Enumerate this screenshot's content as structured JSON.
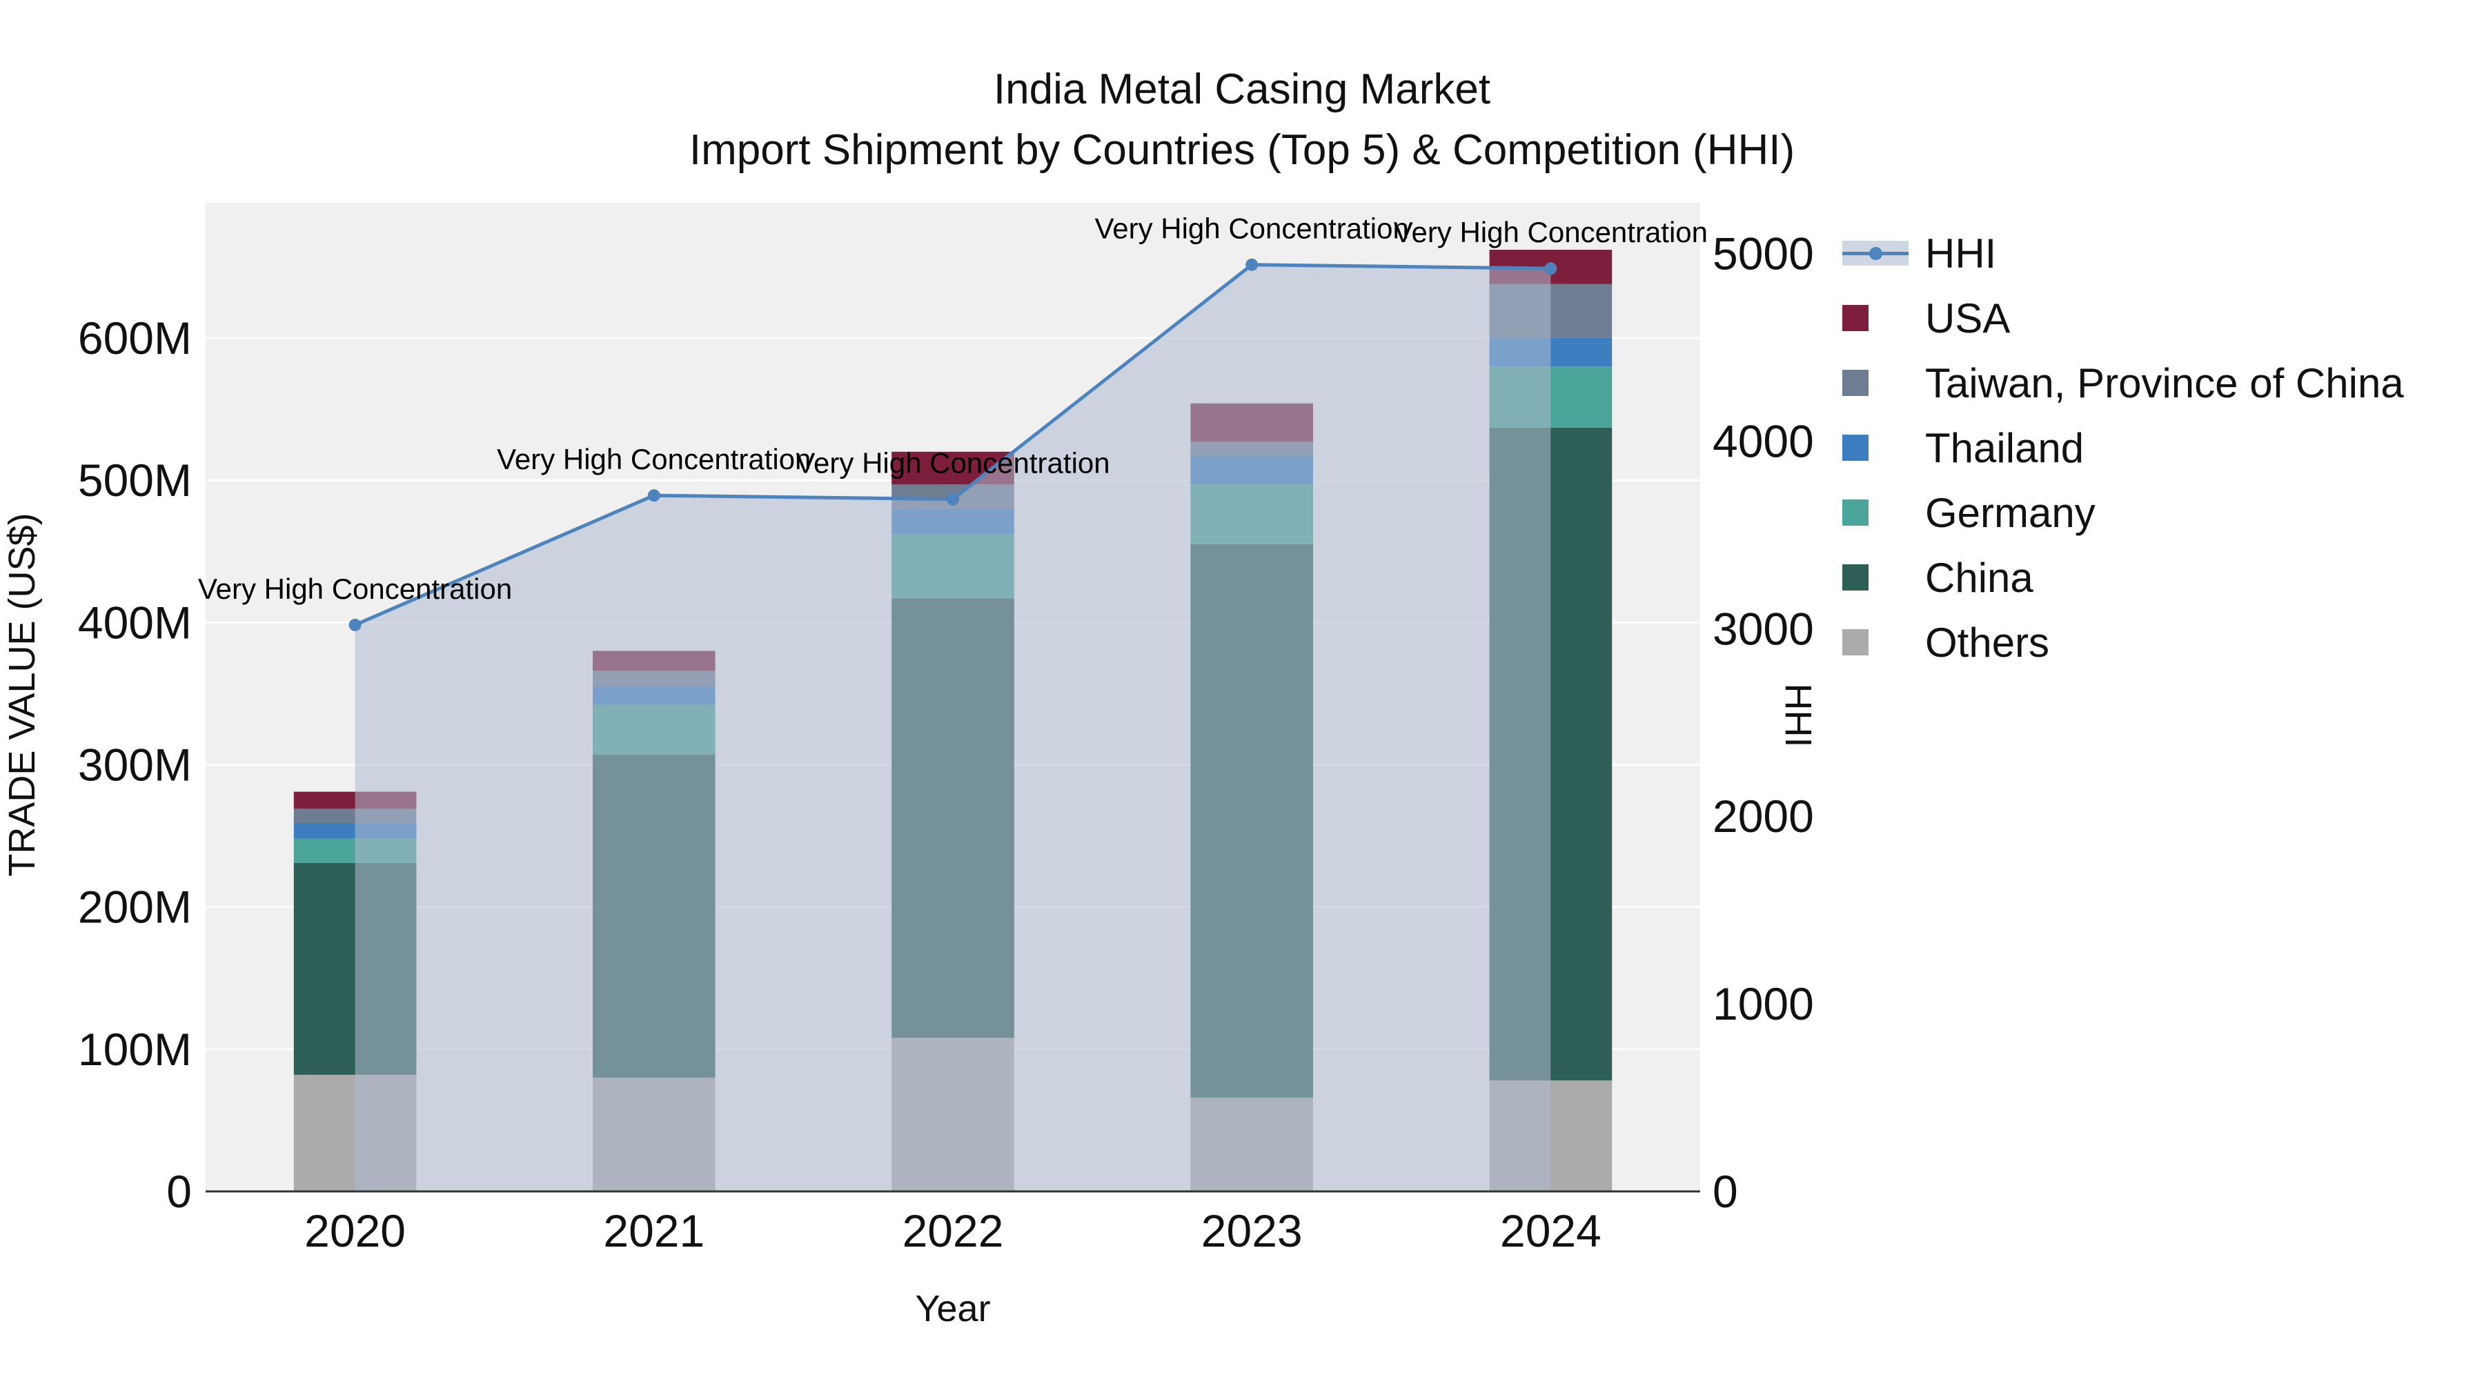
{
  "chart_data": {
    "type": "bar",
    "subtype": "stacked-bar-with-line-overlay-and-area",
    "title": "India Metal Casing Market",
    "subtitle": "Import Shipment by Countries (Top 5) & Competition (HHI)",
    "xlabel": "Year",
    "ylabel": "TRADE VALUE (US$)",
    "ylabel_secondary": "HHI",
    "categories": [
      "2020",
      "2021",
      "2022",
      "2023",
      "2024"
    ],
    "value_unit": "millions USD (read from left axis)",
    "stack_order": "bottom_to_top",
    "series": [
      {
        "name": "Others",
        "color": "#ababab",
        "values": [
          82,
          80,
          108,
          66,
          78
        ]
      },
      {
        "name": "China",
        "color": "#2d5f56",
        "values": [
          149,
          227,
          309,
          389,
          459
        ]
      },
      {
        "name": "Germany",
        "color": "#4ba59a",
        "values": [
          17,
          35,
          45,
          42,
          43
        ]
      },
      {
        "name": "Thailand",
        "color": "#3c7ec0",
        "values": [
          11,
          13,
          18,
          20,
          20
        ]
      },
      {
        "name": "Taiwan, Province of China",
        "color": "#6f7d92",
        "values": [
          10,
          11,
          17,
          10,
          38
        ]
      },
      {
        "name": "USA",
        "color": "#7c1e3c",
        "values": [
          12,
          14,
          23,
          27,
          24
        ]
      }
    ],
    "bar_totals": [
      281,
      380,
      520,
      554,
      662
    ],
    "line_series": {
      "name": "HHI",
      "axis": "right",
      "color": "#4d84bd",
      "area_fill": "rgba(174,188,207,0.55)",
      "values": [
        3020,
        3710,
        3690,
        4940,
        4920
      ]
    },
    "point_annotations": [
      "Very High Concentration",
      "Very High Concentration",
      "Very High Concentration",
      "Very High Concentration",
      "Very High Concentration"
    ],
    "axes": {
      "left": {
        "tick_labels": [
          "0",
          "100M",
          "200M",
          "300M",
          "400M",
          "500M",
          "600M"
        ],
        "tick_values": [
          0,
          100,
          200,
          300,
          400,
          500,
          600
        ],
        "range": [
          0,
          695
        ]
      },
      "right": {
        "tick_labels": [
          "0",
          "1000",
          "2000",
          "3000",
          "4000",
          "5000"
        ],
        "tick_values": [
          0,
          1000,
          2000,
          3000,
          4000,
          5000
        ],
        "range": [
          0,
          5270
        ]
      }
    },
    "grid": {
      "horizontal": true,
      "color": "#ffffff"
    },
    "plot_background": "#f0f0f0",
    "axis_line_color": "#333333",
    "legend": {
      "position": "right",
      "entries": [
        {
          "label": "HHI",
          "swatch": "line",
          "color": "#4d84bd",
          "fill": "#cdd6e1"
        },
        {
          "label": "USA",
          "swatch": "square",
          "color": "#7c1e3c"
        },
        {
          "label": "Taiwan, Province of China",
          "swatch": "square",
          "color": "#6f7d92"
        },
        {
          "label": "Thailand",
          "swatch": "square",
          "color": "#3c7ec0"
        },
        {
          "label": "Germany",
          "swatch": "square",
          "color": "#4ba59a"
        },
        {
          "label": "China",
          "swatch": "square",
          "color": "#2d5f56"
        },
        {
          "label": "Others",
          "swatch": "square",
          "color": "#ababab"
        }
      ]
    }
  }
}
